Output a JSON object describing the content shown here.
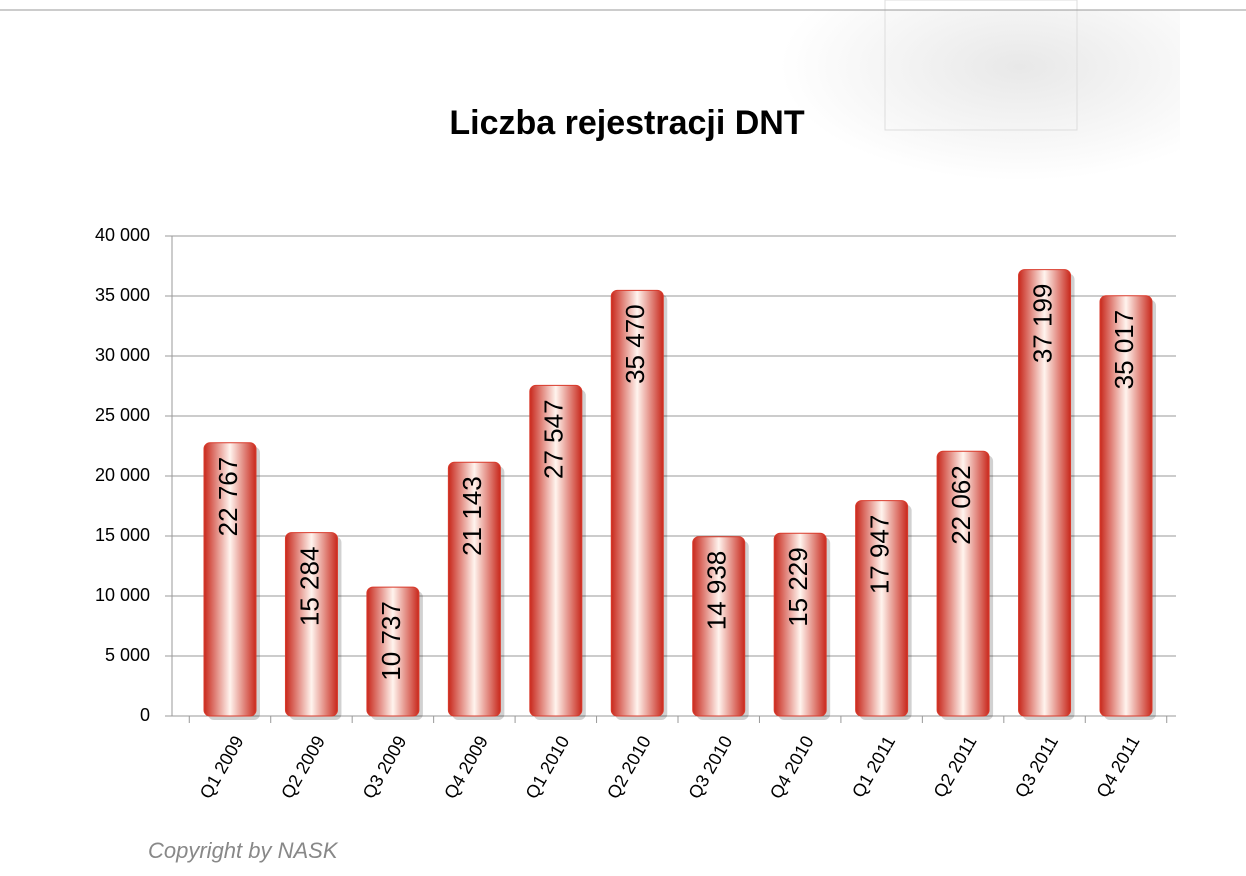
{
  "chart_data": {
    "type": "bar",
    "title": "Liczba rejestracji DNT",
    "categories": [
      "Q1 2009",
      "Q2 2009",
      "Q3 2009",
      "Q4 2009",
      "Q1 2010",
      "Q2 2010",
      "Q3 2010",
      "Q4 2010",
      "Q1 2011",
      "Q2 2011",
      "Q3 2011",
      "Q4 2011"
    ],
    "values": [
      22767,
      15284,
      10737,
      21143,
      27547,
      35470,
      14938,
      15229,
      17947,
      22062,
      37199,
      35017
    ],
    "value_labels": [
      "22 767",
      "15 284",
      "10 737",
      "21 143",
      "27 547",
      "35 470",
      "14 938",
      "15 229",
      "17 947",
      "22 062",
      "37 199",
      "35 017"
    ],
    "color": "#d93a2b",
    "ylim": [
      0,
      40000
    ],
    "yticks": [
      0,
      {
        "value": 5000,
        "label": "5 000"
      },
      {
        "value": 10000,
        "label": "10 000"
      },
      {
        "value": 15000,
        "label": "15 000"
      },
      {
        "value": 20000,
        "label": "20 000"
      },
      {
        "value": 25000,
        "label": "25 000"
      },
      {
        "value": 30000,
        "label": "30 000"
      },
      {
        "value": 35000,
        "label": "35 000"
      },
      {
        "value": 40000,
        "label": "40 000"
      }
    ],
    "grid": true,
    "footer": "Copyright by NASK"
  }
}
